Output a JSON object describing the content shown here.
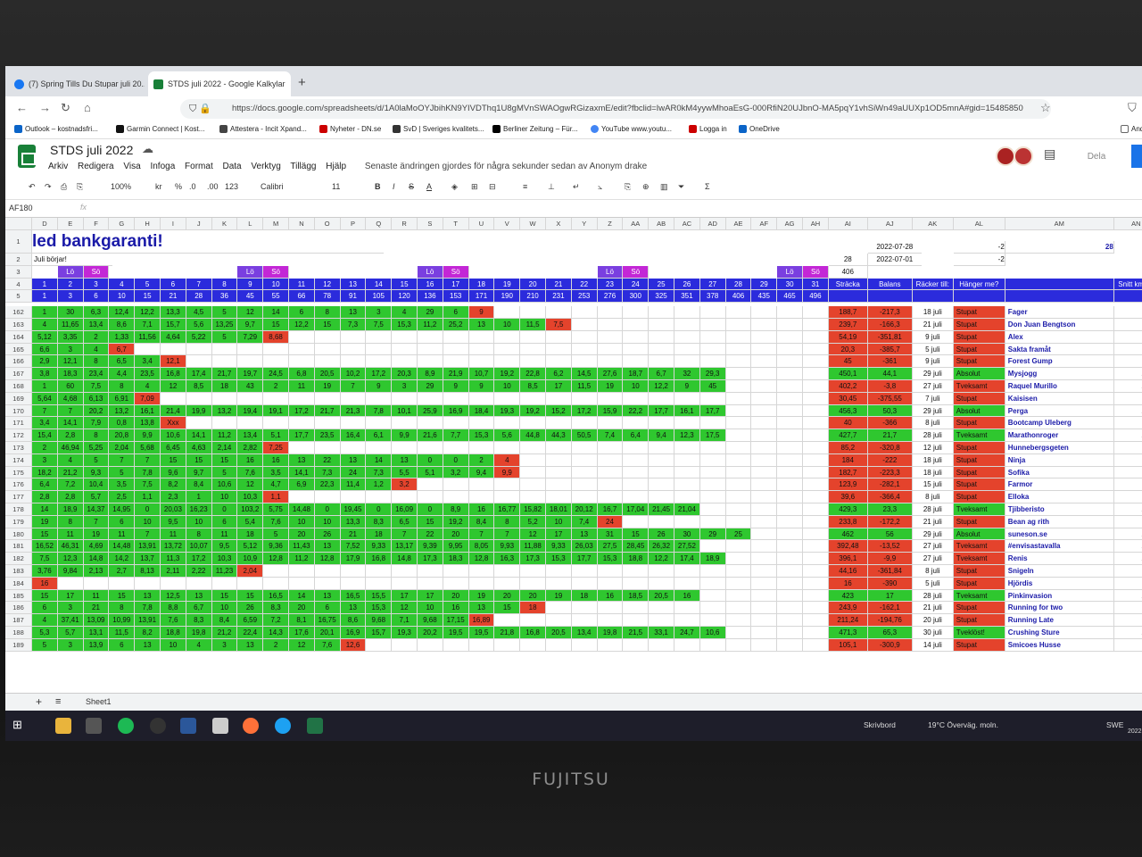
{
  "browser": {
    "tabs": [
      {
        "label": "(7) Spring Tills Du Stupar juli 20..."
      },
      {
        "label": "STDS juli 2022 - Google Kalkylar"
      }
    ],
    "url": "https://docs.google.com/spreadsheets/d/1A0laMoOYJbihKN9YIVDThq1U8gMVnSWAOgwRGizaxmE/edit?fbclid=IwAR0kM4yywMhoaEsG-000RfiN20UJbnO-MA5pqY1vhSiWn49aUUXp1OD5mnA#gid=15485850",
    "bookmarks": [
      "Outlook – kostnadsfri...",
      "Garmin Connect | Kost...",
      "Attestera - Incit Xpand...",
      "Nyheter - DN.se",
      "SvD | Sveriges kvalitets...",
      "Berliner Zeitung – Für...",
      "YouTube  www.youtu...",
      "Logga in",
      "OneDrive",
      "Andr"
    ]
  },
  "sheets": {
    "title": "STDS juli 2022",
    "menus": [
      "Arkiv",
      "Redigera",
      "Visa",
      "Infoga",
      "Format",
      "Data",
      "Verktyg",
      "Tillägg",
      "Hjälp"
    ],
    "last_edit": "Senaste ändringen gjordes för några sekunder sedan av Anonym drake",
    "share": "Dela",
    "toolbar": {
      "zoom": "100%",
      "currency": "kr",
      "percent": "%",
      "dec1": ".0",
      "dec2": ".00",
      "numfmt": "123",
      "font": "Calibri",
      "size": "11"
    },
    "name_box": "AF180",
    "sheet_tab": "Sheet1"
  },
  "grid": {
    "columns": [
      "D",
      "E",
      "F",
      "G",
      "H",
      "I",
      "J",
      "K",
      "L",
      "M",
      "N",
      "O",
      "P",
      "Q",
      "R",
      "S",
      "T",
      "U",
      "V",
      "W",
      "X",
      "Y",
      "Z",
      "AA",
      "AB",
      "AC",
      "AD",
      "AE",
      "AF",
      "AG",
      "AH",
      "AI",
      "AJ",
      "AK",
      "AL",
      "AM",
      "AN"
    ],
    "rows": [
      {
        "n": "1",
        "cells": {}
      },
      {
        "n": "2",
        "cells": {}
      },
      {
        "n": "3",
        "cells": {}
      },
      {
        "n": "4",
        "cells": {}
      },
      {
        "n": "5",
        "cells": {}
      }
    ],
    "banner": "led bankgaranti!",
    "juli_borjar": "Juli börjar!",
    "top_right": {
      "date1": "2022-07-28",
      "date2": "2022-07-01",
      "val_28a": "28",
      "val_neg2a": "-2",
      "val_neg2b": "-2",
      "val_28b": "28",
      "val_406": "406"
    },
    "weekend_labels": {
      "lo": "Lö",
      "so": "Sö"
    },
    "day_numbers": [
      "1",
      "2",
      "3",
      "4",
      "5",
      "6",
      "7",
      "8",
      "9",
      "10",
      "11",
      "12",
      "13",
      "14",
      "15",
      "16",
      "17",
      "18",
      "19",
      "20",
      "21",
      "22",
      "23",
      "24",
      "25",
      "26",
      "27",
      "28",
      "29",
      "30",
      "31"
    ],
    "cumulative": [
      "1",
      "3",
      "6",
      "10",
      "15",
      "21",
      "28",
      "36",
      "45",
      "55",
      "66",
      "78",
      "91",
      "105",
      "120",
      "136",
      "153",
      "171",
      "190",
      "210",
      "231",
      "253",
      "276",
      "300",
      "325",
      "351",
      "378",
      "406",
      "435",
      "465",
      "496"
    ],
    "headers": {
      "stracka": "Sträcka",
      "balans": "Balans",
      "racker": "Räcker till:",
      "hanger": "Hänger me?",
      "snitt": "Snitt km/da",
      "snitt_val": "16,0"
    },
    "data_rows": [
      {
        "n": "162",
        "d": [
          "1",
          "30",
          "6,3",
          "12,4",
          "12,2",
          "13,3",
          "4,5",
          "5",
          "12",
          "14",
          "6",
          "8",
          "13",
          "3",
          "4",
          "29",
          "6",
          "9"
        ],
        "stracka": "188,7",
        "balans": "-217,3",
        "racker": "18 juli",
        "hanger": "Stupat",
        "name": "Fager",
        "snitt": "6,7"
      },
      {
        "n": "163",
        "d": [
          "4",
          "11,65",
          "13,4",
          "8,6",
          "7,1",
          "15,7",
          "5,6",
          "13,25",
          "9,7",
          "15",
          "12,2",
          "15",
          "7,3",
          "7,5",
          "15,3",
          "11,2",
          "25,2",
          "13",
          "10",
          "11,5",
          "7,5"
        ],
        "stracka": "239,7",
        "balans": "-166,3",
        "racker": "21 juli",
        "hanger": "Stupat",
        "name": "Don Juan Bengtson",
        "snitt": "8,6"
      },
      {
        "n": "164",
        "d": [
          "5,12",
          "3,35",
          "2",
          "1,33",
          "11,56",
          "4,64",
          "5,22",
          "5",
          "7,29",
          "8,68"
        ],
        "stracka": "54,19",
        "balans": "-351,81",
        "racker": "9 juli",
        "hanger": "Stupat",
        "name": "Alex",
        "snitt": "1,9"
      },
      {
        "n": "165",
        "d": [
          "6,6",
          "3",
          "4",
          "6,7"
        ],
        "stracka": "20,3",
        "balans": "-385,7",
        "racker": "5 juli",
        "hanger": "Stupat",
        "name": "Sakta framåt",
        "snitt": "0,7"
      },
      {
        "n": "166",
        "d": [
          "2,9",
          "12,1",
          "8",
          "6,5",
          "3,4",
          "12,1"
        ],
        "stracka": "45",
        "balans": "-361",
        "racker": "9 juli",
        "hanger": "Stupat",
        "name": "Forest Gump",
        "snitt": "1,6"
      },
      {
        "n": "167",
        "d": [
          "3,8",
          "18,3",
          "23,4",
          "4,4",
          "23,5",
          "16,8",
          "17,4",
          "21,7",
          "19,7",
          "24,5",
          "6,8",
          "20,5",
          "10,2",
          "17,2",
          "20,3",
          "8,9",
          "21,9",
          "10,7",
          "19,2",
          "22,8",
          "6,2",
          "14,5",
          "27,6",
          "18,7",
          "6,7",
          "32",
          "29,3"
        ],
        "stracka": "450,1",
        "balans": "44,1",
        "racker": "29 juli",
        "hanger": "Absolut",
        "name": "Mysjogg",
        "snitt": "16,1"
      },
      {
        "n": "168",
        "d": [
          "1",
          "60",
          "7,5",
          "8",
          "4",
          "12",
          "8,5",
          "18",
          "43",
          "2",
          "11",
          "19",
          "7",
          "9",
          "3",
          "29",
          "9",
          "9",
          "10",
          "8,5",
          "17",
          "11,5",
          "19",
          "10",
          "12,2",
          "9",
          "45"
        ],
        "stracka": "402,2",
        "balans": "-3,8",
        "racker": "27 juli",
        "hanger": "Tveksamt",
        "name": "Raquel Murillo",
        "snitt": "14,4"
      },
      {
        "n": "169",
        "d": [
          "5,64",
          "4,68",
          "6,13",
          "6,91",
          "7,09"
        ],
        "stracka": "30,45",
        "balans": "-375,55",
        "racker": "7 juli",
        "hanger": "Stupat",
        "name": "Kaisisen",
        "snitt": "1,1"
      },
      {
        "n": "170",
        "d": [
          "7",
          "7",
          "20,2",
          "13,2",
          "16,1",
          "21,4",
          "19,9",
          "13,2",
          "19,4",
          "19,1",
          "17,2",
          "21,7",
          "21,3",
          "7,8",
          "10,1",
          "25,9",
          "16,9",
          "18,4",
          "19,3",
          "19,2",
          "15,2",
          "17,2",
          "15,9",
          "22,2",
          "17,7",
          "16,1",
          "17,7"
        ],
        "stracka": "456,3",
        "balans": "50,3",
        "racker": "29 juli",
        "hanger": "Absolut",
        "name": "Perga",
        "snitt": "16,3"
      },
      {
        "n": "171",
        "d": [
          "3,4",
          "14,1",
          "7,9",
          "0,8",
          "13,8",
          "Xxx"
        ],
        "stracka": "40",
        "balans": "-366",
        "racker": "8 juli",
        "hanger": "Stupat",
        "name": "Bootcamp Uleberg",
        "snitt": "1,4"
      },
      {
        "n": "172",
        "d": [
          "15,4",
          "2,8",
          "8",
          "20,8",
          "9,9",
          "10,6",
          "14,1",
          "11,2",
          "13,4",
          "5,1",
          "17,7",
          "23,5",
          "16,4",
          "6,1",
          "9,9",
          "21,6",
          "7,7",
          "15,3",
          "5,6",
          "44,8",
          "44,3",
          "50,5",
          "7,4",
          "6,4",
          "9,4",
          "12,3",
          "17,5"
        ],
        "stracka": "427,7",
        "balans": "21,7",
        "racker": "28 juli",
        "hanger": "Tveksamt",
        "name": "Marathonroger",
        "snitt": "15,3"
      },
      {
        "n": "173",
        "d": [
          "2",
          "46,94",
          "5,25",
          "2,04",
          "5,68",
          "6,45",
          "4,63",
          "2,14",
          "2,82",
          "7,25"
        ],
        "stracka": "85,2",
        "balans": "-320,8",
        "racker": "12 juli",
        "hanger": "Stupat",
        "name": "Hunnebergsgeten",
        "snitt": "3,0"
      },
      {
        "n": "174",
        "d": [
          "3",
          "4",
          "5",
          "7",
          "7",
          "15",
          "15",
          "15",
          "16",
          "16",
          "13",
          "22",
          "13",
          "14",
          "13",
          "0",
          "0",
          "2",
          "4"
        ],
        "stracka": "184",
        "balans": "-222",
        "racker": "18 juli",
        "hanger": "Stupat",
        "name": "Ninja",
        "snitt": "6,6"
      },
      {
        "n": "175",
        "d": [
          "18,2",
          "21,2",
          "9,3",
          "5",
          "7,8",
          "9,6",
          "9,7",
          "5",
          "7,6",
          "3,5",
          "14,1",
          "7,3",
          "24",
          "7,3",
          "5,5",
          "5,1",
          "3,2",
          "9,4",
          "9,9"
        ],
        "stracka": "182,7",
        "balans": "-223,3",
        "racker": "18 juli",
        "hanger": "Stupat",
        "name": "Sofika",
        "snitt": "6,5"
      },
      {
        "n": "176",
        "d": [
          "6,4",
          "7,2",
          "10,4",
          "3,5",
          "7,5",
          "8,2",
          "8,4",
          "10,6",
          "12",
          "4,7",
          "6,9",
          "22,3",
          "11,4",
          "1,2",
          "3,2"
        ],
        "stracka": "123,9",
        "balans": "-282,1",
        "racker": "15 juli",
        "hanger": "Stupat",
        "name": "Farmor",
        "snitt": "4,4"
      },
      {
        "n": "177",
        "d": [
          "2,8",
          "2,8",
          "5,7",
          "2,5",
          "1,1",
          "2,3",
          "1",
          "10",
          "10,3",
          "1,1"
        ],
        "stracka": "39,6",
        "balans": "-366,4",
        "racker": "8 juli",
        "hanger": "Stupat",
        "name": "Elloka",
        "snitt": "1,4"
      },
      {
        "n": "178",
        "d": [
          "14",
          "18,9",
          "14,37",
          "14,95",
          "0",
          "20,03",
          "16,23",
          "0",
          "103,2",
          "5,75",
          "14,48",
          "0",
          "19,45",
          "0",
          "16,09",
          "0",
          "8,9",
          "16",
          "16,77",
          "15,82",
          "18,01",
          "20,12",
          "16,7",
          "17,04",
          "21,45",
          "21,04"
        ],
        "stracka": "429,3",
        "balans": "23,3",
        "racker": "28 juli",
        "hanger": "Tveksamt",
        "name": "Tjibberisto",
        "snitt": "15,3"
      },
      {
        "n": "179",
        "d": [
          "19",
          "8",
          "7",
          "6",
          "10",
          "9,5",
          "10",
          "6",
          "5,4",
          "7,6",
          "10",
          "10",
          "13,3",
          "8,3",
          "6,5",
          "15",
          "19,2",
          "8,4",
          "8",
          "5,2",
          "10",
          "7,4",
          "24"
        ],
        "stracka": "233,8",
        "balans": "-172,2",
        "racker": "21 juli",
        "hanger": "Stupat",
        "name": "Bean ag rith",
        "snitt": "8,4"
      },
      {
        "n": "180",
        "d": [
          "15",
          "11",
          "19",
          "11",
          "7",
          "11",
          "8",
          "11",
          "18",
          "5",
          "20",
          "26",
          "21",
          "18",
          "7",
          "22",
          "20",
          "7",
          "7",
          "12",
          "17",
          "13",
          "31",
          "15",
          "26",
          "30",
          "29",
          "25"
        ],
        "stracka": "462",
        "balans": "56",
        "racker": "29 juli",
        "hanger": "Absolut",
        "name": "suneson.se",
        "snitt": "16,5"
      },
      {
        "n": "181",
        "d": [
          "16,52",
          "46,31",
          "4,69",
          "14,48",
          "13,91",
          "13,72",
          "10,07",
          "9,5",
          "5,12",
          "9,36",
          "11,43",
          "13",
          "7,52",
          "9,33",
          "13,17",
          "9,39",
          "9,95",
          "8,05",
          "9,93",
          "11,88",
          "9,33",
          "26,03",
          "27,5",
          "28,45",
          "26,32",
          "27,52"
        ],
        "stracka": "392,48",
        "balans": "-13,52",
        "racker": "27 juli",
        "hanger": "Tveksamt",
        "name": "#envisastavalla",
        "snitt": "14,0"
      },
      {
        "n": "182",
        "d": [
          "7,5",
          "12,3",
          "14,8",
          "14,2",
          "13,7",
          "11,3",
          "17,2",
          "10,3",
          "10,9",
          "12,8",
          "11,2",
          "12,8",
          "17,9",
          "16,8",
          "14,8",
          "17,3",
          "18,3",
          "12,8",
          "16,3",
          "17,3",
          "15,3",
          "17,7",
          "15,3",
          "18,8",
          "12,2",
          "17,4",
          "18,9"
        ],
        "stracka": "396,1",
        "balans": "-9,9",
        "racker": "27 juli",
        "hanger": "Tveksamt",
        "name": "Renis",
        "snitt": "14,1"
      },
      {
        "n": "183",
        "d": [
          "3,76",
          "9,84",
          "2,13",
          "2,7",
          "8,13",
          "2,11",
          "2,22",
          "11,23",
          "2,04"
        ],
        "stracka": "44,16",
        "balans": "-361,84",
        "racker": "8 juli",
        "hanger": "Stupat",
        "name": "Snigeln",
        "snitt": "1,6"
      },
      {
        "n": "184",
        "d": [
          "16"
        ],
        "stracka": "16",
        "balans": "-390",
        "racker": "5 juli",
        "hanger": "Stupat",
        "name": "Hjördis",
        "snitt": "0,6"
      },
      {
        "n": "185",
        "d": [
          "15",
          "17",
          "11",
          "15",
          "13",
          "12,5",
          "13",
          "15",
          "15",
          "16,5",
          "14",
          "13",
          "16,5",
          "15,5",
          "17",
          "17",
          "20",
          "19",
          "20",
          "20",
          "19",
          "18",
          "16",
          "18,5",
          "20,5",
          "16"
        ],
        "stracka": "423",
        "balans": "17",
        "racker": "28 juli",
        "hanger": "Tveksamt",
        "name": "Pinkinvasion",
        "snitt": "15,1"
      },
      {
        "n": "186",
        "d": [
          "6",
          "3",
          "21",
          "8",
          "7,8",
          "8,8",
          "6,7",
          "10",
          "26",
          "8,3",
          "20",
          "6",
          "13",
          "15,3",
          "12",
          "10",
          "16",
          "13",
          "15",
          "18"
        ],
        "stracka": "243,9",
        "balans": "-162,1",
        "racker": "21 juli",
        "hanger": "Stupat",
        "name": "Running for two",
        "snitt": "8,7"
      },
      {
        "n": "187",
        "d": [
          "4",
          "37,41",
          "13,09",
          "10,99",
          "13,91",
          "7,6",
          "8,3",
          "8,4",
          "6,59",
          "7,2",
          "8,1",
          "16,75",
          "8,6",
          "9,68",
          "7,1",
          "9,68",
          "17,15",
          "16,89"
        ],
        "stracka": "211,24",
        "balans": "-194,76",
        "racker": "20 juli",
        "hanger": "Stupat",
        "name": "Running Late",
        "snitt": "7,5"
      },
      {
        "n": "188",
        "d": [
          "5,3",
          "5,7",
          "13,1",
          "11,5",
          "8,2",
          "18,8",
          "19,8",
          "21,2",
          "22,4",
          "14,3",
          "17,6",
          "20,1",
          "16,9",
          "15,7",
          "19,3",
          "20,2",
          "19,5",
          "19,5",
          "21,8",
          "16,8",
          "20,5",
          "13,4",
          "19,8",
          "21,5",
          "33,1",
          "24,7",
          "10,6"
        ],
        "stracka": "471,3",
        "balans": "65,3",
        "racker": "30 juli",
        "hanger": "Tveklöst!",
        "name": "Crushing Sture",
        "snitt": "16,8"
      },
      {
        "n": "189",
        "d": [
          "5",
          "3",
          "13,9",
          "6",
          "13",
          "10",
          "4",
          "3",
          "13",
          "2",
          "12",
          "7,6",
          "12,6"
        ],
        "stracka": "105,1",
        "balans": "-300,9",
        "racker": "14 juli",
        "hanger": "Stupat",
        "name": "Smicoes Husse",
        "snitt": "3,8"
      }
    ]
  },
  "taskbar": {
    "desktop": "Skrivbord",
    "weather": "19°C  Överväg. moln.",
    "lang": "SWE",
    "date": "2022"
  },
  "bezel": {
    "brand": "FUJITSU"
  },
  "colors": {
    "green": "#2fc72f",
    "red": "#e4432c",
    "blue_header": "#2b2bdc",
    "magenta": "#c327d6",
    "purple": "#7a3fe0"
  }
}
